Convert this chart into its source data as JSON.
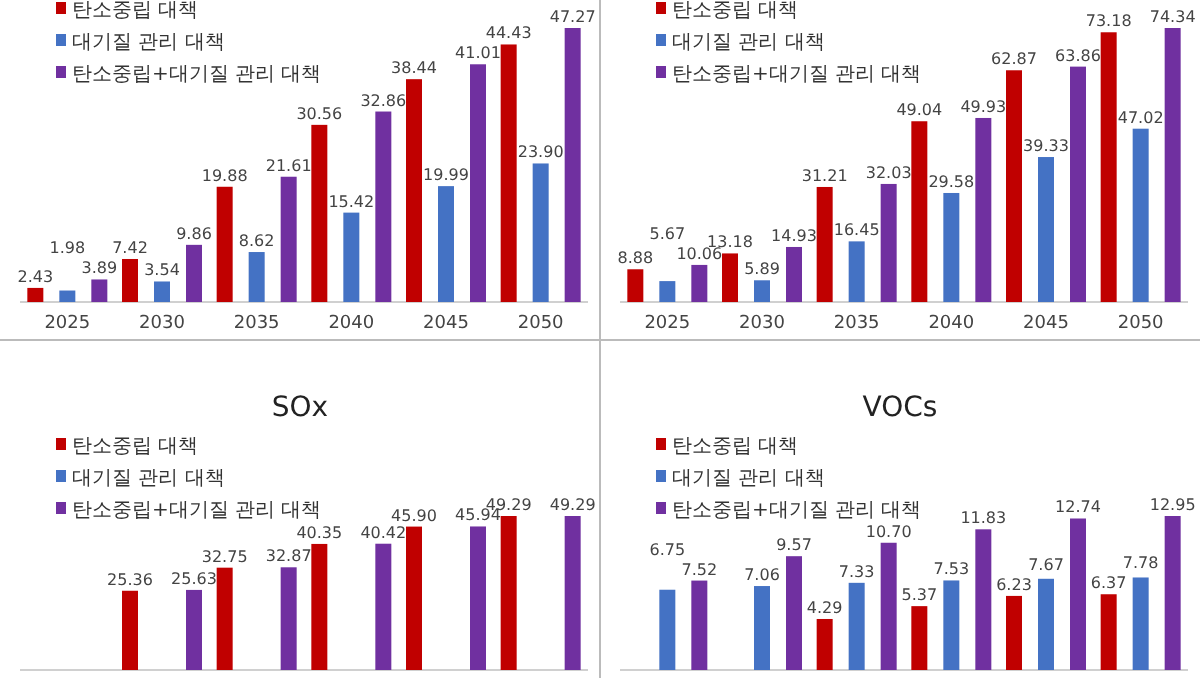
{
  "chart_data": [
    {
      "type": "bar",
      "categories": [
        "2025",
        "2030",
        "2035",
        "2040",
        "2045",
        "2050"
      ],
      "legend": "top left",
      "series": [
        {
          "name": "탄소중립 대책",
          "color": "#c00000",
          "values": [
            2.43,
            7.42,
            19.88,
            30.56,
            38.44,
            44.43
          ],
          "value_labels": [
            "2.43",
            "7.42",
            "19.88",
            "30.56",
            "38.44",
            "44.43"
          ]
        },
        {
          "name": "대기질 관리 대책",
          "color": "#4472c4",
          "values": [
            1.98,
            3.54,
            8.62,
            15.42,
            19.99,
            23.9
          ],
          "value_labels": [
            "1.98",
            "3.54",
            "8.62",
            "15.42",
            "19.99",
            "23.90"
          ]
        },
        {
          "name": "탄소중립+대기질 관리 대책",
          "color": "#7030a0",
          "values": [
            3.89,
            9.86,
            21.61,
            32.86,
            41.01,
            47.27
          ],
          "value_labels": [
            "3.89",
            "9.86",
            "21.61",
            "32.86",
            "41.01",
            "47.27"
          ]
        }
      ]
    },
    {
      "type": "bar",
      "categories": [
        "2025",
        "2030",
        "2035",
        "2040",
        "2045",
        "2050"
      ],
      "legend": "top left",
      "series": [
        {
          "name": "탄소중립 대책",
          "color": "#c00000",
          "values": [
            8.88,
            13.18,
            31.21,
            49.04,
            62.87,
            73.18
          ],
          "value_labels": [
            "8.88",
            "13.18",
            "31.21",
            "49.04",
            "62.87",
            "73.18"
          ]
        },
        {
          "name": "대기질 관리 대책",
          "color": "#4472c4",
          "values": [
            5.67,
            5.89,
            16.45,
            29.58,
            39.33,
            47.02
          ],
          "value_labels": [
            "5.67",
            "5.89",
            "16.45",
            "29.58",
            "39.33",
            "47.02"
          ]
        },
        {
          "name": "탄소중립+대기질 관리 대책",
          "color": "#7030a0",
          "values": [
            10.06,
            14.93,
            32.03,
            49.93,
            63.86,
            74.34
          ],
          "value_labels": [
            "10.06",
            "14.93",
            "32.03",
            "49.93",
            "63.86",
            "74.34"
          ]
        }
      ]
    },
    {
      "type": "bar",
      "title": "SOx",
      "categories": [
        null,
        null,
        null,
        null,
        null,
        null
      ],
      "legend": "top left",
      "series": [
        {
          "name": "탄소중립 대책",
          "color": "#c00000",
          "values": [
            null,
            25.36,
            32.75,
            40.35,
            45.9,
            49.29
          ],
          "value_labels": [
            null,
            "25.36",
            "32.75",
            "40.35",
            "45.90",
            "49.29"
          ]
        },
        {
          "name": "대기질 관리 대책",
          "color": "#4472c4",
          "values": [
            null,
            null,
            null,
            null,
            null,
            null
          ]
        },
        {
          "name": "탄소중립+대기질 관리 대책",
          "color": "#7030a0",
          "values": [
            null,
            25.63,
            32.87,
            40.42,
            45.94,
            49.29
          ],
          "value_labels": [
            null,
            "25.63",
            "32.87",
            "40.42",
            "45.94",
            "49.29"
          ]
        }
      ]
    },
    {
      "type": "bar",
      "title": "VOCs",
      "categories": [
        null,
        null,
        null,
        null,
        null,
        null
      ],
      "legend": "top left",
      "series": [
        {
          "name": "탄소중립 대책",
          "color": "#c00000",
          "values": [
            null,
            null,
            4.29,
            5.37,
            6.23,
            6.37
          ],
          "value_labels": [
            null,
            null,
            "4.29",
            "5.37",
            "6.23",
            "6.37"
          ]
        },
        {
          "name": "대기질 관리 대책",
          "color": "#4472c4",
          "values": [
            6.75,
            7.06,
            7.33,
            7.53,
            7.67,
            7.78
          ],
          "value_labels": [
            "6.75",
            "7.06",
            "7.33",
            "7.53",
            "7.67",
            "7.78"
          ]
        },
        {
          "name": "탄소중립+대기질 관리 대책",
          "color": "#7030a0",
          "values": [
            7.52,
            9.57,
            10.7,
            11.83,
            12.74,
            12.95
          ],
          "value_labels": [
            "7.52",
            "9.57",
            "10.70",
            "11.83",
            "12.74",
            "12.95"
          ]
        }
      ]
    }
  ]
}
